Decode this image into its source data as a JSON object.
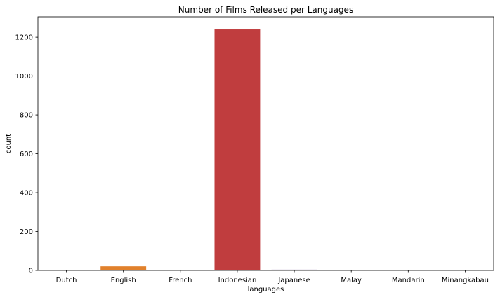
{
  "chart_data": {
    "type": "bar",
    "title": "Number of Films Released per Languages",
    "xlabel": "languages",
    "ylabel": "count",
    "categories": [
      "Dutch",
      "English",
      "French",
      "Indonesian",
      "Japanese",
      "Malay",
      "Mandarin",
      "Minangkabau"
    ],
    "values": [
      3,
      21,
      1,
      1240,
      4,
      1,
      1,
      3
    ],
    "colors": [
      "#3274a1",
      "#e1812c",
      "#3a923a",
      "#c03d3e",
      "#9372b2",
      "#845b53",
      "#d684bd",
      "#7f7f7f"
    ],
    "ylim": [
      0,
      1305
    ],
    "yticks": [
      0,
      200,
      400,
      600,
      800,
      1000,
      1200
    ],
    "grid": false,
    "legend": "none"
  }
}
